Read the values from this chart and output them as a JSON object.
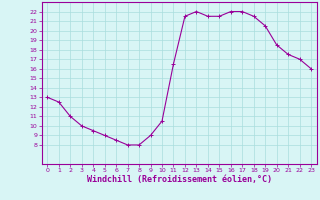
{
  "x": [
    0,
    1,
    2,
    3,
    4,
    5,
    6,
    7,
    8,
    9,
    10,
    11,
    12,
    13,
    14,
    15,
    16,
    17,
    18,
    19,
    20,
    21,
    22,
    23
  ],
  "y": [
    13,
    12.5,
    11,
    10,
    9.5,
    9,
    8.5,
    8,
    8,
    9,
    10.5,
    16.5,
    21.5,
    22,
    21.5,
    21.5,
    22,
    22,
    21.5,
    20.5,
    18.5,
    17.5,
    17,
    16
  ],
  "line_color": "#990099",
  "marker": "+",
  "bg_color": "#d8f5f5",
  "grid_color": "#aadddd",
  "xlabel": "Windchill (Refroidissement éolien,°C)",
  "xlabel_color": "#990099",
  "xlim": [
    -0.5,
    23.5
  ],
  "ylim": [
    6,
    23
  ],
  "yticks": [
    8,
    9,
    10,
    11,
    12,
    13,
    14,
    15,
    16,
    17,
    18,
    19,
    20,
    21,
    22
  ],
  "xticks": [
    0,
    1,
    2,
    3,
    4,
    5,
    6,
    7,
    8,
    9,
    10,
    11,
    12,
    13,
    14,
    15,
    16,
    17,
    18,
    19,
    20,
    21,
    22,
    23
  ],
  "tick_color": "#990099",
  "tick_fontsize": 4.5,
  "xlabel_fontsize": 6.0,
  "spine_color": "#990099",
  "linewidth": 0.8,
  "markersize": 2.5,
  "markeredgewidth": 0.7
}
